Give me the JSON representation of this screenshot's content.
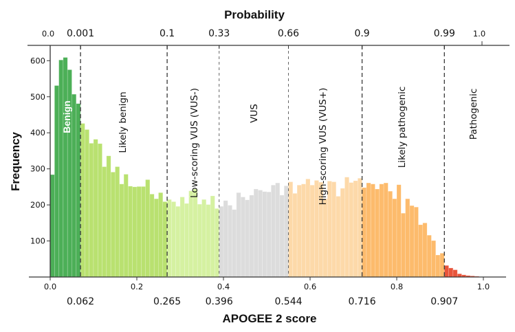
{
  "chart_data": {
    "type": "bar",
    "title": "Probability",
    "xlabel": "APOGEE 2 score",
    "ylabel": "Frequency",
    "xlim": [
      0,
      1
    ],
    "ylim": [
      0,
      640
    ],
    "bin_width": 0.01,
    "x_ticks": [
      "0.0",
      "0.2",
      "0.4",
      "0.6",
      "0.8",
      "1.0"
    ],
    "y_ticks": [
      "100",
      "200",
      "300",
      "400",
      "500",
      "600"
    ],
    "top_axis": {
      "start_label": "0.0",
      "end_label": "1.0"
    },
    "grid": false,
    "categories": [
      {
        "name": "Benign",
        "color": "#4caf57",
        "text_color": "#ffffff",
        "values": [
          284,
          531,
          602,
          609,
          575,
          507,
          481
        ]
      },
      {
        "name": "Likely benign",
        "color": "#b9e170",
        "text_color": "#111111",
        "values": [
          426,
          409,
          371,
          382,
          370,
          306,
          336,
          291,
          306,
          258,
          285,
          252,
          250,
          251,
          251,
          270,
          230,
          217,
          234,
          209
        ]
      },
      {
        "name": "Low-scoring VUS (VUS-)",
        "color": "#d5f1a1",
        "text_color": "#111111",
        "values": [
          215,
          209,
          196,
          222,
          204,
          239,
          244,
          202,
          215,
          201,
          225,
          190
        ]
      },
      {
        "name": "VUS",
        "color": "#dcdcdc",
        "text_color": "#111111",
        "values": [
          196,
          212,
          199,
          187,
          234,
          222,
          214,
          227,
          244,
          241,
          237,
          236,
          255,
          261,
          227,
          253
        ]
      },
      {
        "name": "High-scoring VUS (VUS+)",
        "color": "#fdd9a9",
        "text_color": "#111111",
        "values": [
          264,
          232,
          255,
          258,
          272,
          255,
          268,
          263,
          217,
          266,
          264,
          224,
          246,
          277,
          262,
          267,
          274
        ]
      },
      {
        "name": "Likely pathogenic",
        "color": "#fdbb6c",
        "text_color": "#111111",
        "values": [
          248,
          261,
          258,
          244,
          258,
          261,
          238,
          217,
          256,
          177,
          217,
          198,
          194,
          145,
          150,
          116,
          101,
          61,
          66
        ]
      },
      {
        "name": "Pathogenic",
        "color": "#e8553b",
        "text_color": "#111111",
        "values": [
          32,
          25,
          20,
          9,
          6,
          4,
          3,
          2
        ]
      }
    ],
    "thresholds": [
      {
        "score": "0.062",
        "probability": "0.001"
      },
      {
        "score": "0.265",
        "probability": "0.1"
      },
      {
        "score": "0.396",
        "probability": "0.33"
      },
      {
        "score": "0.544",
        "probability": "0.66"
      },
      {
        "score": "0.716",
        "probability": "0.9"
      },
      {
        "score": "0.907",
        "probability": "0.99"
      }
    ]
  }
}
